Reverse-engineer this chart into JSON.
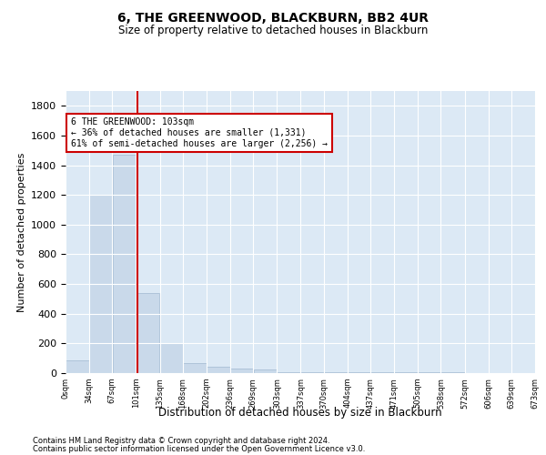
{
  "title": "6, THE GREENWOOD, BLACKBURN, BB2 4UR",
  "subtitle": "Size of property relative to detached houses in Blackburn",
  "xlabel": "Distribution of detached houses by size in Blackburn",
  "ylabel": "Number of detached properties",
  "bar_color": "#c9d9ea",
  "bar_edge_color": "#a0b8d0",
  "bg_color": "#dce9f5",
  "grid_color": "#ffffff",
  "vline_x": 103,
  "vline_color": "#cc0000",
  "bin_edges": [
    0,
    34,
    67,
    101,
    135,
    168,
    202,
    236,
    269,
    303,
    337,
    370,
    404,
    437,
    471,
    505,
    538,
    572,
    606,
    639,
    673
  ],
  "bin_labels": [
    "0sqm",
    "34sqm",
    "67sqm",
    "101sqm",
    "135sqm",
    "168sqm",
    "202sqm",
    "236sqm",
    "269sqm",
    "303sqm",
    "337sqm",
    "370sqm",
    "404sqm",
    "437sqm",
    "471sqm",
    "505sqm",
    "538sqm",
    "572sqm",
    "606sqm",
    "639sqm",
    "673sqm"
  ],
  "bar_heights": [
    85,
    1200,
    1470,
    540,
    205,
    65,
    45,
    32,
    25,
    8,
    8,
    8,
    8,
    5,
    5,
    5,
    5,
    0,
    0,
    0
  ],
  "ylim": [
    0,
    1900
  ],
  "yticks": [
    0,
    200,
    400,
    600,
    800,
    1000,
    1200,
    1400,
    1600,
    1800
  ],
  "annotation_line1": "6 THE GREENWOOD: 103sqm",
  "annotation_line2": "← 36% of detached houses are smaller (1,331)",
  "annotation_line3": "61% of semi-detached houses are larger (2,256) →",
  "annotation_box_color": "#cc0000",
  "footnote1": "Contains HM Land Registry data © Crown copyright and database right 2024.",
  "footnote2": "Contains public sector information licensed under the Open Government Licence v3.0."
}
